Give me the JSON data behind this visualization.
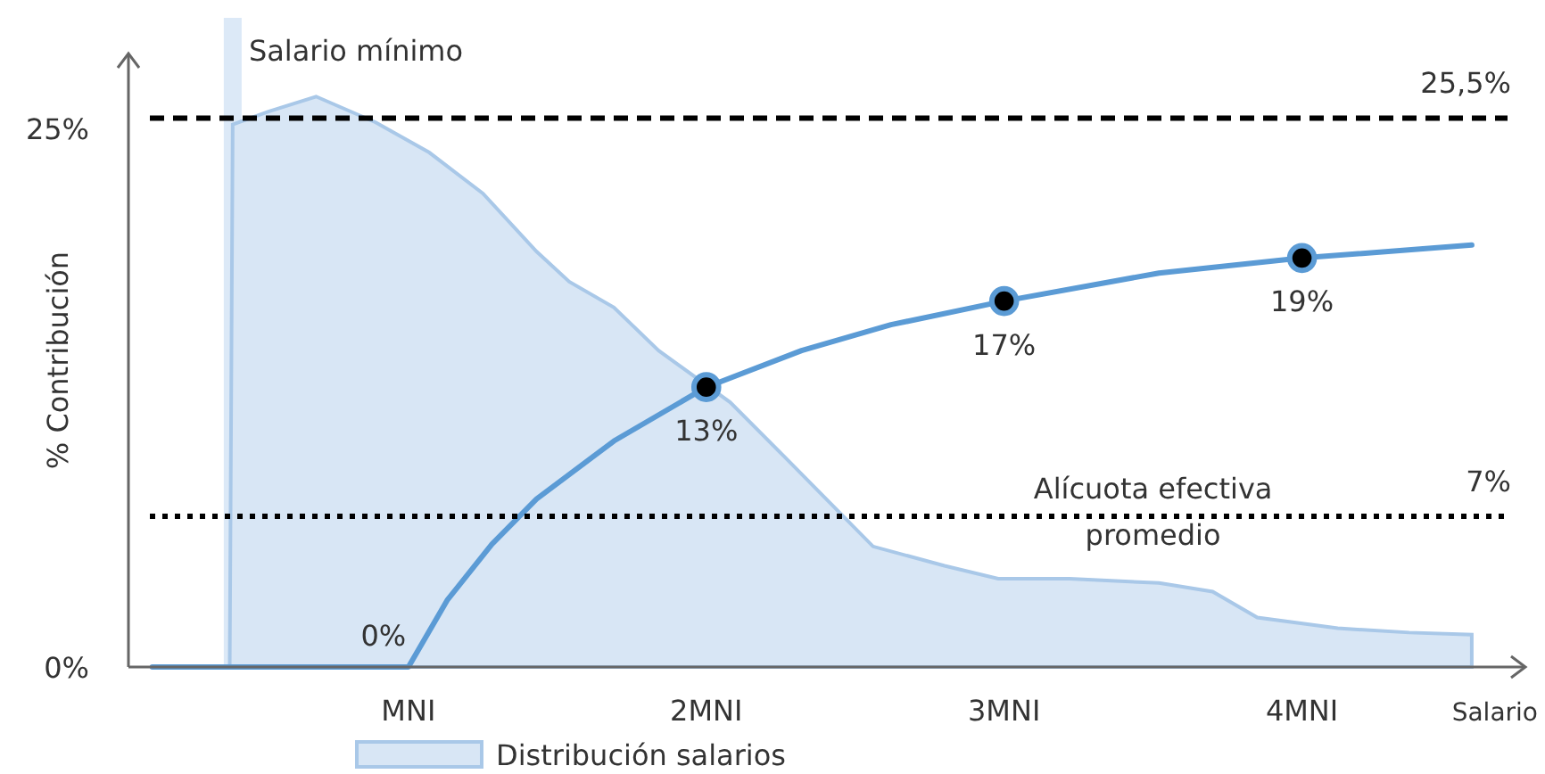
{
  "chart_data": {
    "type": "line",
    "ylabel": "% Contribución",
    "xlabel": "Salario",
    "xlim": [
      0.06,
      4.75
    ],
    "ylim": [
      0,
      28.5
    ],
    "xticks": [
      {
        "value": 1,
        "label": "MNI"
      },
      {
        "value": 2,
        "label": "2MNI"
      },
      {
        "value": 3,
        "label": "3MNI"
      },
      {
        "value": 4,
        "label": "4MNI"
      }
    ],
    "yticks": [
      {
        "value": 0,
        "label": "0%"
      },
      {
        "value": 25,
        "label": "25%"
      }
    ],
    "grid": false,
    "legend": "bottom",
    "series": [
      {
        "type": "area",
        "name": "Distribución salarios",
        "color": "#a9c8e8",
        "x": [
          0.4,
          0.41,
          0.53,
          0.69,
          0.89,
          1.07,
          1.25,
          1.43,
          1.54,
          1.69,
          1.84,
          2.08,
          2.26,
          2.41,
          2.56,
          2.8,
          2.98,
          3.22,
          3.52,
          3.7,
          3.85,
          4.12,
          4.36,
          4.57,
          4.57
        ],
        "values": [
          0,
          25.2,
          25.8,
          26.5,
          25.3,
          23.9,
          22,
          19.3,
          17.9,
          16.7,
          14.7,
          12.3,
          9.8,
          7.7,
          5.6,
          4.7,
          4.1,
          4.1,
          3.9,
          3.5,
          2.3,
          1.8,
          1.6,
          1.5,
          0
        ]
      },
      {
        "color": "#5b9bd5",
        "marker": "none",
        "x": [
          0.14,
          1,
          1.13,
          1.28,
          1.43,
          1.69,
          2,
          2.32,
          2.62,
          3,
          3.52,
          4,
          4.57
        ],
        "values": [
          0,
          0,
          3.1,
          5.7,
          7.8,
          10.5,
          13,
          14.7,
          15.9,
          17,
          18.3,
          19,
          19.6
        ]
      },
      {
        "type": "scatter",
        "color": "#5b9bd5",
        "marker": "circle",
        "x": [
          2,
          3,
          4
        ],
        "values": [
          13,
          17,
          19
        ],
        "value_labels": [
          "13%",
          "17%",
          "19%"
        ]
      }
    ],
    "ref_lines": [
      {
        "axis": "y",
        "value": 25.5,
        "label": "25,5%",
        "line_style": "dashed",
        "color": "#000000"
      },
      {
        "axis": "y",
        "value": 7,
        "label": "7%",
        "line_style": "dotted",
        "color": "#000000"
      }
    ],
    "bands": [
      {
        "axis": "x",
        "from": 0.38,
        "to": 0.44,
        "label": "Salario mínimo",
        "color": "#dce9f7"
      }
    ],
    "annotations": [
      {
        "text": "0%",
        "x": 1,
        "y": 0
      },
      {
        "text": "Alícuota efectiva promedio",
        "x": 3.5,
        "y": 7
      }
    ]
  }
}
